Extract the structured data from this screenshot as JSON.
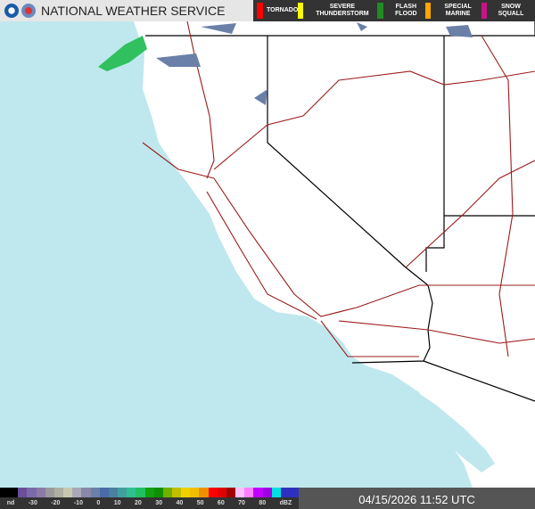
{
  "header": {
    "title": "NATIONAL WEATHER SERVICE",
    "logos": [
      "noaa-logo",
      "nws-logo"
    ]
  },
  "warnings": [
    {
      "label": "TORNADO",
      "color": "#ff0000"
    },
    {
      "label": "SEVERE THUNDERSTORM",
      "color": "#ffff00"
    },
    {
      "label": "FLASH FLOOD",
      "color": "#228b22"
    },
    {
      "label": "SPECIAL MARINE",
      "color": "#ffa500"
    },
    {
      "label": "SNOW SQUALL",
      "color": "#c71585"
    }
  ],
  "legend": {
    "ticks": [
      "nd",
      "-30",
      "-20",
      "-10",
      "0",
      "10",
      "20",
      "30",
      "40",
      "50",
      "60",
      "70",
      "80",
      "dBZ"
    ],
    "colors": [
      "#000000",
      "#000000",
      "#6a4e9a",
      "#7b6aa8",
      "#8a7ba8",
      "#9a9a9a",
      "#b0b0a0",
      "#c8c8b0",
      "#a8a8b8",
      "#8888a8",
      "#6a80a8",
      "#4a6aa8",
      "#4a80a0",
      "#40a0a0",
      "#30c090",
      "#20c060",
      "#10a010",
      "#109000",
      "#70b000",
      "#c0c000",
      "#f0d000",
      "#f0c000",
      "#f09000",
      "#ff0000",
      "#e00000",
      "#a00000",
      "#ffc0ff",
      "#ff80ff",
      "#c000ff",
      "#a000e0",
      "#00e0e0",
      "#3030c0",
      "#3030c0"
    ]
  },
  "timestamp": "04/15/2026 11:52 UTC",
  "colors": {
    "ocean": "#bfe8ee",
    "land": "#ffffff",
    "highways": "#9b1b1b",
    "state_borders": "#000000",
    "county_borders": "#bbbbbb"
  }
}
